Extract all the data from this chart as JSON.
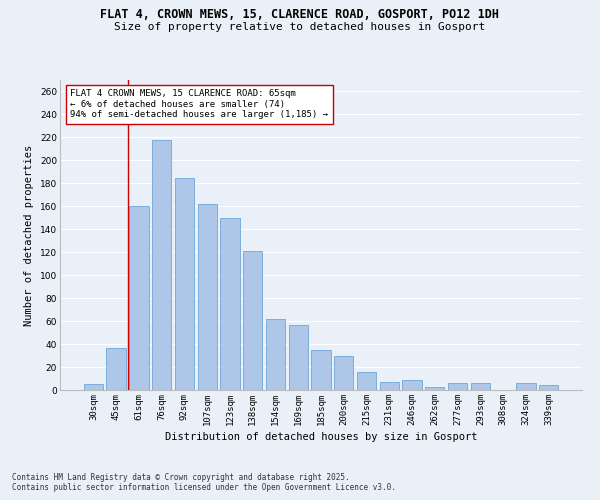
{
  "title1": "FLAT 4, CROWN MEWS, 15, CLARENCE ROAD, GOSPORT, PO12 1DH",
  "title2": "Size of property relative to detached houses in Gosport",
  "xlabel": "Distribution of detached houses by size in Gosport",
  "ylabel": "Number of detached properties",
  "footnote1": "Contains HM Land Registry data © Crown copyright and database right 2025.",
  "footnote2": "Contains public sector information licensed under the Open Government Licence v3.0.",
  "annotation_line1": "FLAT 4 CROWN MEWS, 15 CLARENCE ROAD: 65sqm",
  "annotation_line2": "← 6% of detached houses are smaller (74)",
  "annotation_line3": "94% of semi-detached houses are larger (1,185) →",
  "bar_labels": [
    "30sqm",
    "45sqm",
    "61sqm",
    "76sqm",
    "92sqm",
    "107sqm",
    "123sqm",
    "138sqm",
    "154sqm",
    "169sqm",
    "185sqm",
    "200sqm",
    "215sqm",
    "231sqm",
    "246sqm",
    "262sqm",
    "277sqm",
    "293sqm",
    "308sqm",
    "324sqm",
    "339sqm"
  ],
  "bar_values": [
    5,
    37,
    160,
    218,
    185,
    162,
    150,
    121,
    62,
    57,
    35,
    30,
    16,
    7,
    9,
    3,
    6,
    6,
    0,
    6,
    4
  ],
  "bar_color": "#aec6e8",
  "bar_edge_color": "#5b9bd5",
  "vline_x": 1.5,
  "vline_color": "#cc0000",
  "annotation_box_color": "#ffffff",
  "annotation_box_edge": "#cc0000",
  "ylim": [
    0,
    270
  ],
  "yticks": [
    0,
    20,
    40,
    60,
    80,
    100,
    120,
    140,
    160,
    180,
    200,
    220,
    240,
    260
  ],
  "bg_color": "#eaf0f8",
  "grid_color": "#ffffff",
  "title_fontsize": 8.5,
  "subtitle_fontsize": 8.0,
  "axis_label_fontsize": 7.5,
  "tick_fontsize": 6.5,
  "annot_fontsize": 6.5,
  "footnote_fontsize": 5.5
}
